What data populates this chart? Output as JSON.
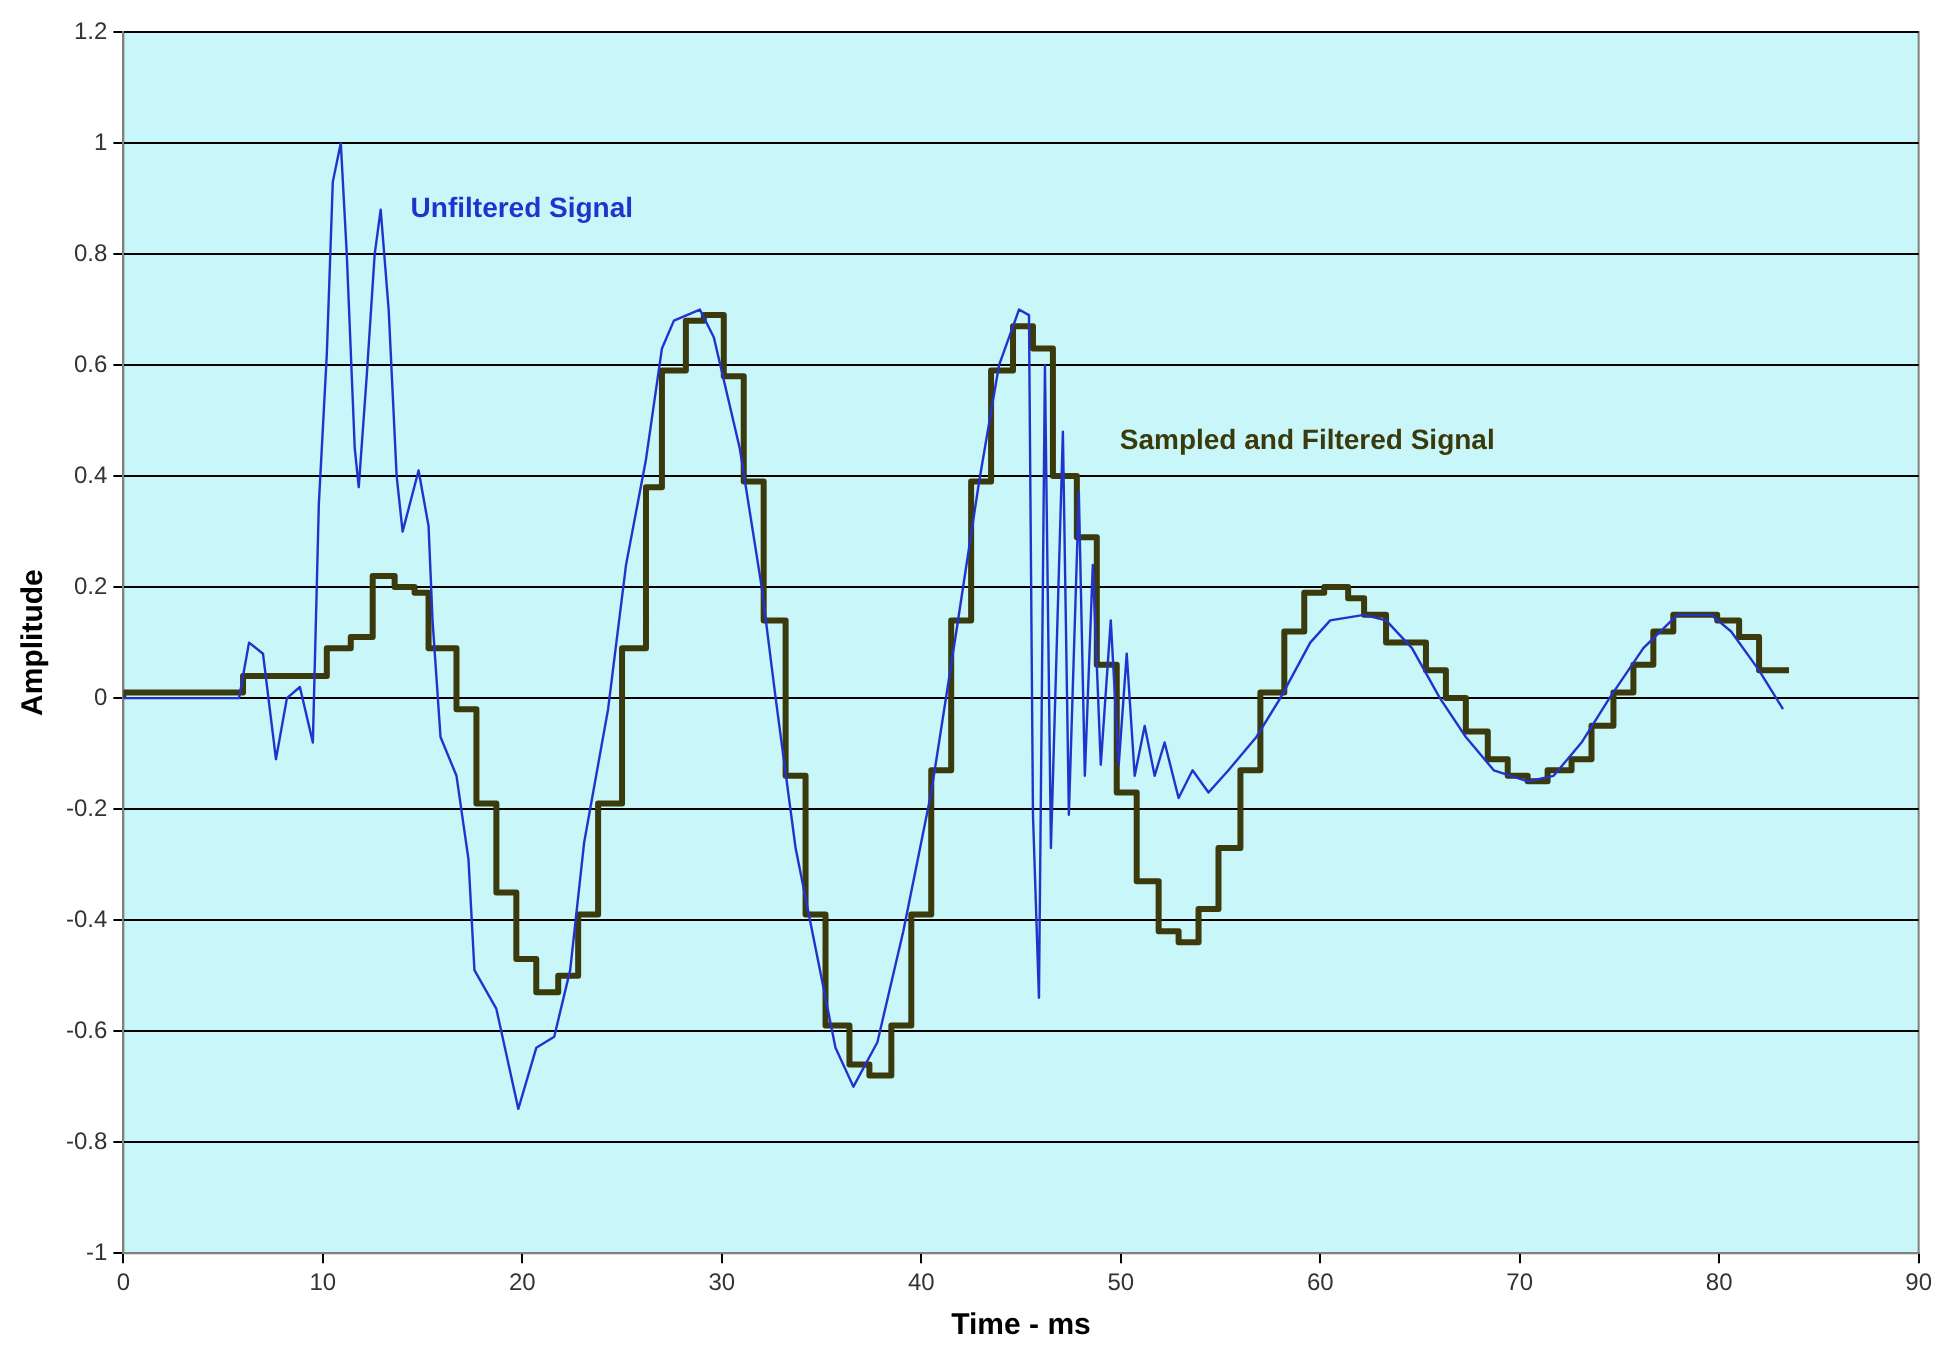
{
  "chart_data": {
    "type": "line",
    "xlabel": "Time - ms",
    "ylabel": "Amplitude",
    "xlim": [
      0,
      90
    ],
    "xticks": [
      0,
      10,
      20,
      30,
      40,
      50,
      60,
      70,
      80,
      90
    ],
    "ylim": [
      -1,
      1.2
    ],
    "yticks": [
      -1,
      -0.8,
      -0.6,
      -0.4,
      -0.2,
      0,
      0.2,
      0.4,
      0.6,
      0.8,
      1,
      1.2
    ],
    "grid": "y",
    "legend": false,
    "marker": "none",
    "line_style": "solid",
    "series": [
      {
        "type": "line",
        "name": "Unfiltered Signal",
        "color": "#2233cc",
        "x": [
          0,
          5.8,
          6.3,
          7.0,
          7.65,
          8.2,
          8.85,
          9.5,
          9.8,
          10.2,
          10.5,
          10.9,
          11.2,
          11.6,
          11.8,
          12.2,
          12.6,
          12.9,
          13.3,
          13.7,
          14.0,
          14.8,
          15.3,
          15.5,
          15.9,
          16.7,
          17.3,
          17.6,
          18.7,
          19.8,
          20.7,
          21.6,
          22.4,
          23.1,
          24.3,
          25.2,
          26.2,
          27.0,
          27.6,
          28.9,
          29.6,
          30.9,
          32.0,
          32.7,
          33.7,
          34.7,
          35.7,
          36.6,
          37.8,
          39.1,
          40.5,
          41.8,
          42.9,
          43.9,
          44.9,
          45.4,
          45.6,
          45.9,
          46.2,
          46.5,
          47.1,
          47.4,
          47.9,
          48.2,
          48.6,
          49.0,
          49.5,
          49.9,
          50.3,
          50.7,
          51.2,
          51.7,
          52.2,
          52.9,
          53.6,
          54.4,
          55.4,
          56.8,
          58.0,
          59.5,
          60.5,
          62.2,
          63.3,
          64.6,
          66.0,
          67.3,
          68.7,
          70.4,
          71.7,
          73.1,
          74.5,
          76.2,
          77.9,
          79.6,
          80.6,
          82.0,
          83.2
        ],
        "values": [
          0,
          0,
          0.1,
          0.08,
          -0.11,
          0,
          0.02,
          -0.08,
          0.35,
          0.62,
          0.93,
          1.0,
          0.8,
          0.45,
          0.38,
          0.58,
          0.8,
          0.88,
          0.7,
          0.4,
          0.3,
          0.41,
          0.31,
          0.14,
          -0.07,
          -0.14,
          -0.29,
          -0.49,
          -0.56,
          -0.74,
          -0.63,
          -0.61,
          -0.49,
          -0.26,
          -0.02,
          0.24,
          0.43,
          0.63,
          0.68,
          0.7,
          0.65,
          0.45,
          0.2,
          0,
          -0.27,
          -0.45,
          -0.63,
          -0.7,
          -0.62,
          -0.42,
          -0.17,
          0.13,
          0.39,
          0.6,
          0.7,
          0.69,
          -0.21,
          -0.54,
          0.6,
          -0.27,
          0.48,
          -0.21,
          0.37,
          -0.14,
          0.24,
          -0.12,
          0.14,
          -0.12,
          0.08,
          -0.14,
          -0.05,
          -0.14,
          -0.08,
          -0.18,
          -0.13,
          -0.17,
          -0.13,
          -0.07,
          0,
          0.1,
          0.14,
          0.15,
          0.14,
          0.09,
          0,
          -0.07,
          -0.13,
          -0.15,
          -0.14,
          -0.08,
          0,
          0.09,
          0.15,
          0.15,
          0.12,
          0.05,
          -0.02
        ]
      },
      {
        "type": "step",
        "name": "Sampled and Filtered Signal",
        "color": "#3b3a0c",
        "x": [
          0,
          6,
          10.2,
          11.4,
          12.5,
          13.6,
          14.6,
          15.3,
          16.7,
          17.7,
          18.7,
          19.7,
          20.7,
          21.8,
          22.8,
          23.8,
          25.0,
          26.2,
          27.0,
          28.2,
          29.1,
          30.1,
          31.1,
          32.1,
          33.2,
          34.2,
          35.2,
          36.4,
          37.4,
          38.5,
          39.5,
          40.5,
          41.5,
          42.5,
          43.5,
          44.6,
          45.6,
          46.6,
          47.8,
          48.8,
          49.8,
          50.8,
          51.9,
          52.9,
          53.9,
          54.9,
          56.0,
          57.0,
          58.2,
          59.2,
          60.2,
          61.4,
          62.2,
          63.3,
          65.3,
          66.3,
          67.3,
          68.4,
          69.4,
          70.4,
          71.4,
          72.6,
          73.6,
          74.7,
          75.7,
          76.7,
          77.7,
          78.7,
          79.9,
          81.0,
          82.0,
          83.0,
          83.5
        ],
        "values": [
          0,
          0.01,
          0.04,
          0.09,
          0.11,
          0.22,
          0.2,
          0.19,
          0.09,
          -0.02,
          -0.19,
          -0.35,
          -0.47,
          -0.53,
          -0.5,
          -0.39,
          -0.19,
          0.09,
          0.38,
          0.59,
          0.68,
          0.69,
          0.58,
          0.39,
          0.14,
          -0.14,
          -0.39,
          -0.59,
          -0.66,
          -0.68,
          -0.59,
          -0.39,
          -0.13,
          0.14,
          0.39,
          0.59,
          0.67,
          0.63,
          0.4,
          0.29,
          0.06,
          -0.17,
          -0.33,
          -0.42,
          -0.44,
          -0.38,
          -0.27,
          -0.13,
          0.01,
          0.12,
          0.19,
          0.2,
          0.18,
          0.15,
          0.1,
          0.05,
          0,
          -0.06,
          -0.11,
          -0.14,
          -0.15,
          -0.13,
          -0.11,
          -0.05,
          0.01,
          0.06,
          0.12,
          0.15,
          0.15,
          0.14,
          0.11,
          0.05,
          0.05
        ]
      }
    ]
  }
}
